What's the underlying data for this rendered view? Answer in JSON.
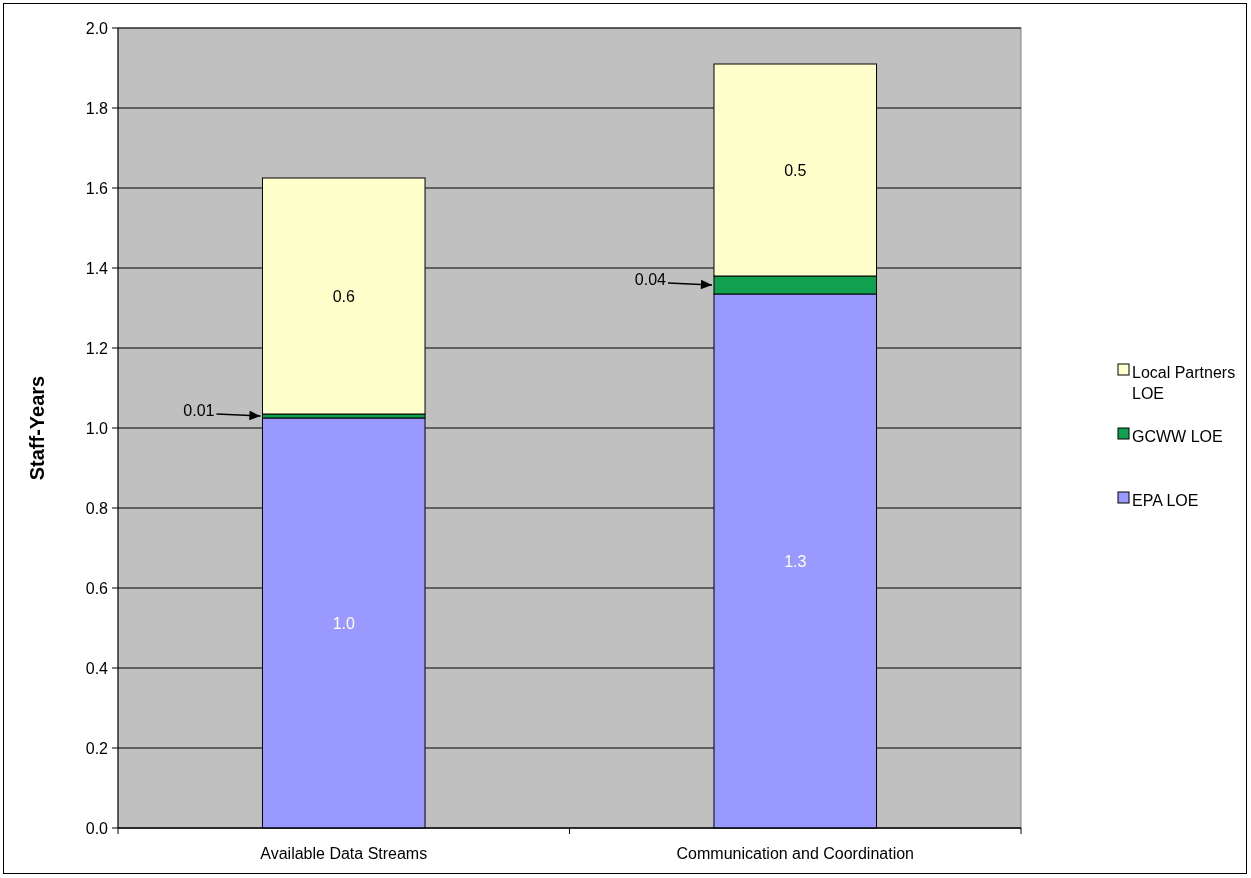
{
  "chart_data": {
    "type": "bar",
    "stacked": true,
    "ylabel": "Staff-Years",
    "categories": [
      "Available Data Streams",
      "Communication and Coordination"
    ],
    "series": [
      {
        "name": "EPA LOE",
        "color": "#9999ff",
        "values": [
          1.025,
          1.335
        ],
        "value_labels": [
          "1.0",
          "1.3"
        ]
      },
      {
        "name": "GCWW LOE",
        "color": "#11a04f",
        "values": [
          0.01,
          0.045
        ],
        "value_labels": [
          "0.01",
          "0.04"
        ]
      },
      {
        "name": "Local Partners LOE",
        "color": "#ffffcc",
        "values": [
          0.59,
          0.53
        ],
        "value_labels": [
          "0.6",
          "0.5"
        ]
      }
    ],
    "ylim": [
      0,
      2
    ],
    "yticks": [
      {
        "value": 0,
        "label": "0.0"
      },
      {
        "value": 0.2,
        "label": "0.2"
      },
      {
        "value": 0.4,
        "label": "0.4"
      },
      {
        "value": 0.6,
        "label": "0.6"
      },
      {
        "value": 0.8,
        "label": "0.8"
      },
      {
        "value": 1,
        "label": "1.0"
      },
      {
        "value": 1.2,
        "label": "1.2"
      },
      {
        "value": 1.4,
        "label": "1.4"
      },
      {
        "value": 1.6,
        "label": "1.6"
      },
      {
        "value": 1.8,
        "label": "1.8"
      },
      {
        "value": 2,
        "label": "2.0"
      }
    ],
    "grid": "y",
    "legend": "right"
  }
}
